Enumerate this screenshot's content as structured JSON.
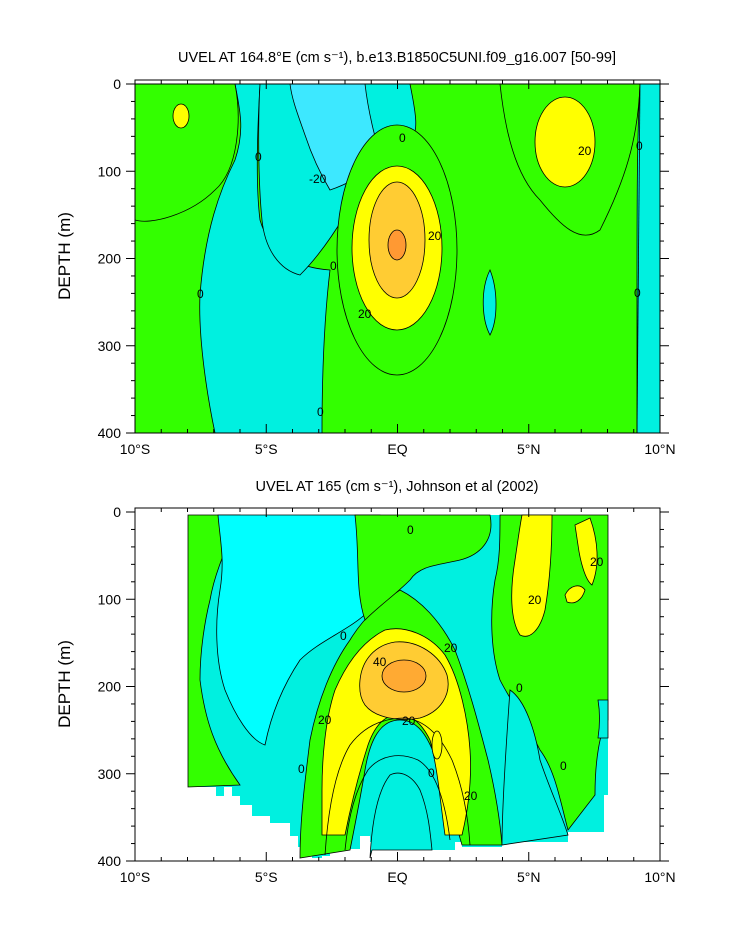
{
  "chart_data": [
    {
      "type": "contour",
      "title": "UVEL AT 164.8°E (cm s⁻¹), b.e13.B1850C5UNI.f09_g16.007 [50-99]",
      "ylabel": "DEPTH (m)",
      "ylim": [
        400,
        0
      ],
      "xlim": [
        -10,
        10
      ],
      "xticks": [
        "10°S",
        "5°S",
        "EQ",
        "5°N",
        "10°N"
      ],
      "yticks": [
        "0",
        "100",
        "200",
        "300",
        "400"
      ],
      "contour_levels": [
        -20,
        0,
        20,
        40
      ],
      "colors": {
        "below_-20": "#3de8ff",
        "-20_0": "#00ffff",
        "0_20": "#33ff00",
        "20_40": "#ffff00",
        "40_60": "#ffcc33",
        "fill_light": "#00f0e0"
      },
      "contour_labels": [
        "0",
        "-20",
        "0",
        "0",
        "20",
        "0",
        "20",
        "0",
        "20",
        "0",
        "0"
      ],
      "features": [
        {
          "name": "equatorial undercurrent core",
          "lat": 0,
          "depth": 190,
          "max_value": 40
        },
        {
          "name": "northern eastward jet",
          "lat": 5.5,
          "depth": 70,
          "max_value": 25
        },
        {
          "name": "southern westward flow",
          "lat": -3,
          "depth": 50,
          "min_value": -20
        }
      ]
    },
    {
      "type": "contour",
      "title": "UVEL AT 165 (cm s⁻¹), Johnson et al (2002)",
      "ylabel": "DEPTH (m)",
      "ylim": [
        400,
        0
      ],
      "xlim": [
        -10,
        10
      ],
      "xticks": [
        "10°S",
        "5°S",
        "EQ",
        "5°N",
        "10°N"
      ],
      "yticks": [
        "0",
        "100",
        "200",
        "300",
        "400"
      ],
      "contour_levels": [
        -20,
        0,
        20,
        40
      ],
      "colors": {
        "below_-20": "#00ffff",
        "-20_0": "#00f0e0",
        "0_20": "#33ff00",
        "20_40": "#ffff00",
        "40_60": "#ffaa33"
      },
      "contour_labels": [
        "0",
        "20",
        "20",
        "0",
        "20",
        "40",
        "0",
        "20",
        "20",
        "0",
        "0",
        "0",
        "20"
      ],
      "features": [
        {
          "name": "equatorial undercurrent core",
          "lat": 0.2,
          "depth": 190,
          "max_value": 45
        },
        {
          "name": "northern eastward jet",
          "lat": 5,
          "depth": 60,
          "max_value": 25
        }
      ]
    }
  ]
}
